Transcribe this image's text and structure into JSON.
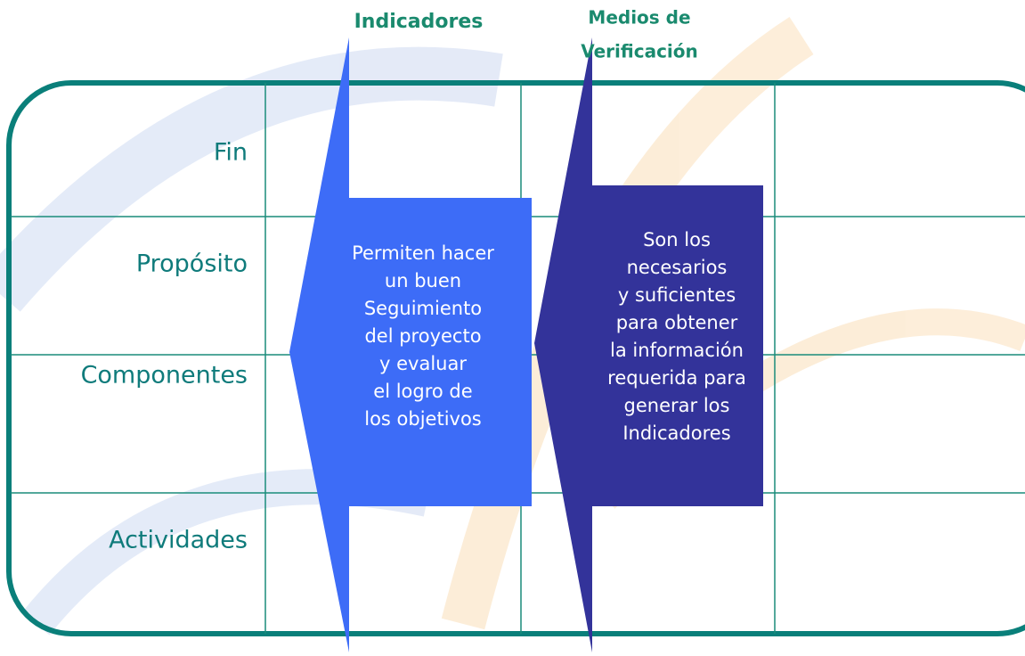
{
  "headers": {
    "indicadores": "Indicadores",
    "medios": [
      "Medios de",
      "Verificación"
    ]
  },
  "rows": [
    "Fin",
    "Propósito",
    "Componentes",
    "Actividades"
  ],
  "indicadores_text": [
    "Permiten hacer",
    "un buen",
    "Seguimiento",
    "del proyecto",
    "y evaluar",
    "el logro de",
    "los objetivos"
  ],
  "medios_text": [
    "Son los",
    "necesarios",
    "y suficientes",
    "para obtener",
    "la información",
    "requerida para",
    "generar los",
    "Indicadores"
  ]
}
